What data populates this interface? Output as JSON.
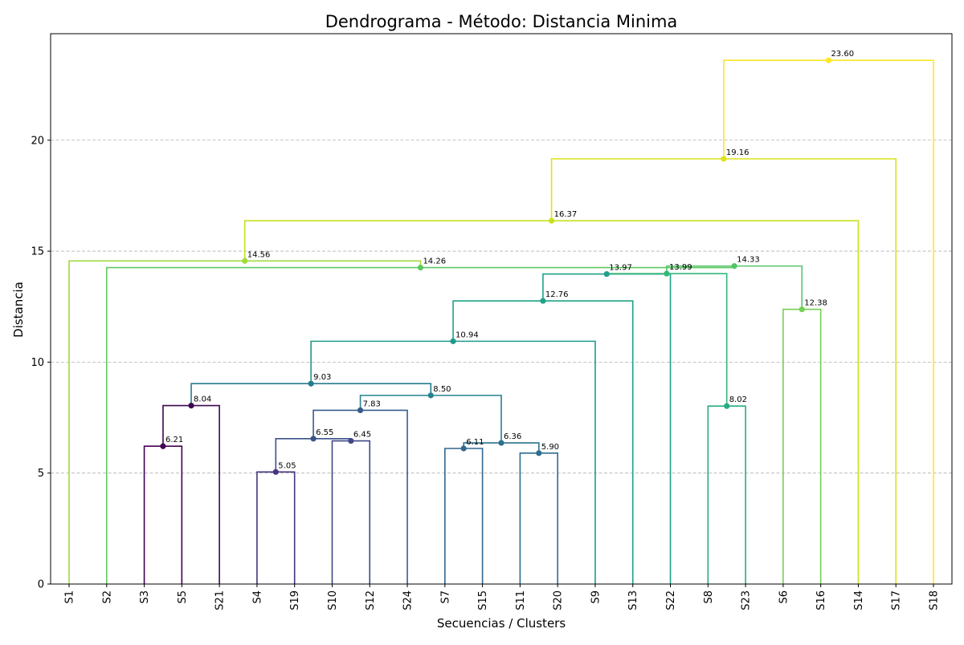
{
  "chart_data": {
    "type": "dendrogram",
    "title": "Dendrograma - Método: Distancia Minima",
    "xlabel": "Secuencias / Clusters",
    "ylabel": "Distancia",
    "ylim": [
      0,
      24.8
    ],
    "yticks": [
      0,
      5,
      10,
      15,
      20
    ],
    "grid": "y-dashed",
    "leaves": [
      "S1",
      "S2",
      "S3",
      "S5",
      "S21",
      "S4",
      "S19",
      "S10",
      "S12",
      "S24",
      "S7",
      "S15",
      "S11",
      "S20",
      "S9",
      "S13",
      "S22",
      "S8",
      "S23",
      "S6",
      "S16",
      "S14",
      "S17",
      "S18"
    ],
    "merges": [
      {
        "id": "m1",
        "left": "S4",
        "right": "S19",
        "height": 5.05,
        "label": "5.05",
        "color": "#46337e"
      },
      {
        "id": "m2",
        "left": "S11",
        "right": "S20",
        "height": 5.9,
        "label": "5.90",
        "color": "#2f6c8e"
      },
      {
        "id": "m3",
        "left": "S7",
        "right": "S15",
        "height": 6.11,
        "label": "6.11",
        "color": "#31668e"
      },
      {
        "id": "m4",
        "left": "S3",
        "right": "S5",
        "height": 6.21,
        "label": "6.21",
        "color": "#440154"
      },
      {
        "id": "m5",
        "left": "S12",
        "right": "S10",
        "height": 6.45,
        "label": "6.45",
        "color": "#3f4788"
      },
      {
        "id": "m6",
        "left": "m1",
        "right": "m5",
        "height": 6.55,
        "label": "6.55",
        "color": "#3b528b"
      },
      {
        "id": "m7",
        "left": "m3",
        "right": "m2",
        "height": 6.36,
        "label": "6.36",
        "color": "#2c728e"
      },
      {
        "id": "m8",
        "left": "m6",
        "right": "S24",
        "height": 7.83,
        "label": "7.83",
        "color": "#365c8d"
      },
      {
        "id": "m9",
        "left": "S8",
        "right": "S23",
        "height": 8.02,
        "label": "8.02",
        "color": "#27ad81"
      },
      {
        "id": "m10",
        "left": "m4",
        "right": "S21",
        "height": 8.04,
        "label": "8.04",
        "color": "#3e0751"
      },
      {
        "id": "m11",
        "left": "m8",
        "right": "m7",
        "height": 8.5,
        "label": "8.50",
        "color": "#26828e"
      },
      {
        "id": "m12",
        "left": "m10",
        "right": "m11",
        "height": 9.03,
        "label": "9.03",
        "color": "#287c8e"
      },
      {
        "id": "m13",
        "left": "m12",
        "right": "S9",
        "height": 10.94,
        "label": "10.94",
        "color": "#1f9a8a"
      },
      {
        "id": "m14",
        "left": "m13",
        "right": "S13",
        "height": 12.76,
        "label": "12.76",
        "color": "#20a386"
      },
      {
        "id": "m15",
        "left": "S6",
        "right": "S16",
        "height": 12.38,
        "label": "12.38",
        "color": "#75d054"
      },
      {
        "id": "m16",
        "left": "m14",
        "right": "S22",
        "height": 13.97,
        "label": "13.97",
        "color": "#1fa088"
      },
      {
        "id": "m17",
        "left": "m16",
        "right": "m9",
        "height": 13.99,
        "label": "13.99",
        "color": "#35b779"
      },
      {
        "id": "m18",
        "left": "m17",
        "right": "m15",
        "height": 14.33,
        "label": "14.33",
        "color": "#52c569"
      },
      {
        "id": "m19",
        "left": "S2",
        "right": "m18",
        "height": 14.26,
        "label": "14.26",
        "color": "#5ec962"
      },
      {
        "id": "m20",
        "left": "S1",
        "right": "m19",
        "height": 14.56,
        "label": "14.56",
        "color": "#a0da39"
      },
      {
        "id": "m21",
        "left": "m20",
        "right": "S14",
        "height": 16.37,
        "label": "16.37",
        "color": "#c8e020"
      },
      {
        "id": "m22",
        "left": "m21",
        "right": "S17",
        "height": 19.16,
        "label": "19.16",
        "color": "#dde318"
      },
      {
        "id": "m23",
        "left": "m22",
        "right": "S18",
        "height": 23.6,
        "label": "23.60",
        "color": "#fde725"
      }
    ]
  }
}
